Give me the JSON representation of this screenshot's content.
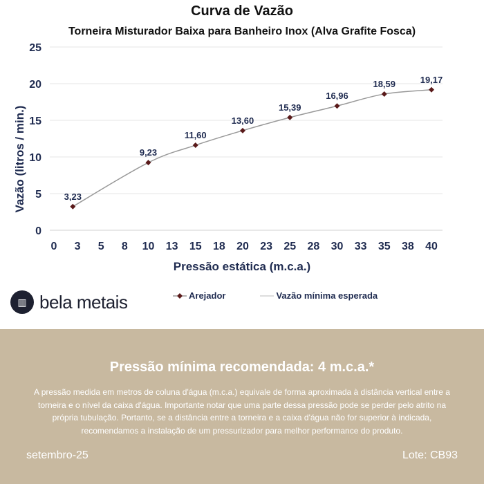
{
  "chart_data": {
    "type": "line",
    "title": "Curva de Vazão",
    "subtitle": "Torneira Misturador Baixa para Banheiro Inox (Alva Grafite Fosca)",
    "xlabel": "Pressão estática (m.c.a.)",
    "ylabel": "Vazão (litros / min.)",
    "xlim": [
      0,
      40
    ],
    "ylim": [
      0,
      25
    ],
    "x_tick_labels": [
      "0",
      "3",
      "5",
      "8",
      "10",
      "13",
      "15",
      "18",
      "20",
      "23",
      "25",
      "28",
      "30",
      "33",
      "35",
      "38",
      "40"
    ],
    "y_tick_labels": [
      "0",
      "5",
      "10",
      "15",
      "20",
      "25"
    ],
    "grid": true,
    "legend_placement": "bottom",
    "series": [
      {
        "name": "Arejador",
        "color": "#5a1a1a",
        "x": [
          2,
          10,
          15,
          20,
          25,
          30,
          35,
          40
        ],
        "y": [
          3.23,
          9.23,
          11.6,
          13.6,
          15.39,
          16.96,
          18.59,
          19.17
        ],
        "labels": [
          "3,23",
          "9,23",
          "11,60",
          "13,60",
          "15,39",
          "16,96",
          "18,59",
          "19,17"
        ]
      },
      {
        "name": "Vazão mínima esperada",
        "color": "#999999"
      }
    ]
  },
  "brand": {
    "name": "bela metais"
  },
  "footer": {
    "title": "Pressão mínima recomendada: 4 m.c.a.*",
    "body": "A pressão medida em metros de coluna d'água (m.c.a.) equivale de forma aproximada à distância vertical entre a torneira e o nível da caixa d'água. Importante notar que uma parte dessa pressão pode se perder pelo atrito na própria tubulação. Portanto, se a distância entre a torneira e a caixa d'água não for superior à indicada, recomendamos a instalação de um pressurizador para melhor performance do produto.",
    "date": "setembro-25",
    "lot": "Lote: CB93",
    "background": "#c8b9a0"
  }
}
